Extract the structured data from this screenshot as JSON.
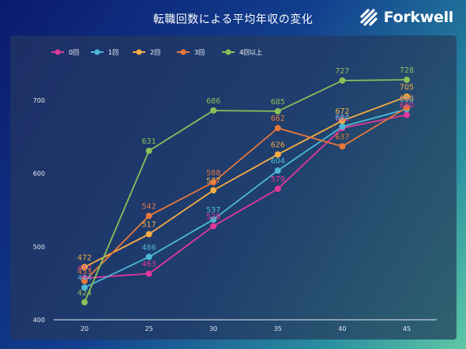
{
  "header": {
    "title": "転職回数による平均年収の変化",
    "brand": "Forkwell"
  },
  "chart_data": {
    "type": "line",
    "title": "転職回数による平均年収の変化",
    "xlabel": "",
    "ylabel": "",
    "x": [
      20,
      25,
      30,
      35,
      40,
      45
    ],
    "ylim": [
      400,
      730
    ],
    "yticks": [
      400,
      500,
      600,
      700
    ],
    "grid": false,
    "legend": "top-left",
    "series": [
      {
        "name": "0回",
        "color": "#e0389a",
        "values": [
          457,
          463,
          528,
          579,
          662,
          680
        ]
      },
      {
        "name": "1回",
        "color": "#4db8d6",
        "values": [
          444,
          486,
          537,
          604,
          664,
          688
        ]
      },
      {
        "name": "2回",
        "color": "#f5ad43",
        "values": [
          472,
          517,
          577,
          626,
          672,
          705
        ]
      },
      {
        "name": "3回",
        "color": "#e8773a",
        "values": [
          453,
          542,
          588,
          662,
          637,
          690
        ]
      },
      {
        "name": "4回以上",
        "color": "#8bbf5a",
        "values": [
          424,
          631,
          686,
          685,
          727,
          728
        ]
      }
    ]
  }
}
